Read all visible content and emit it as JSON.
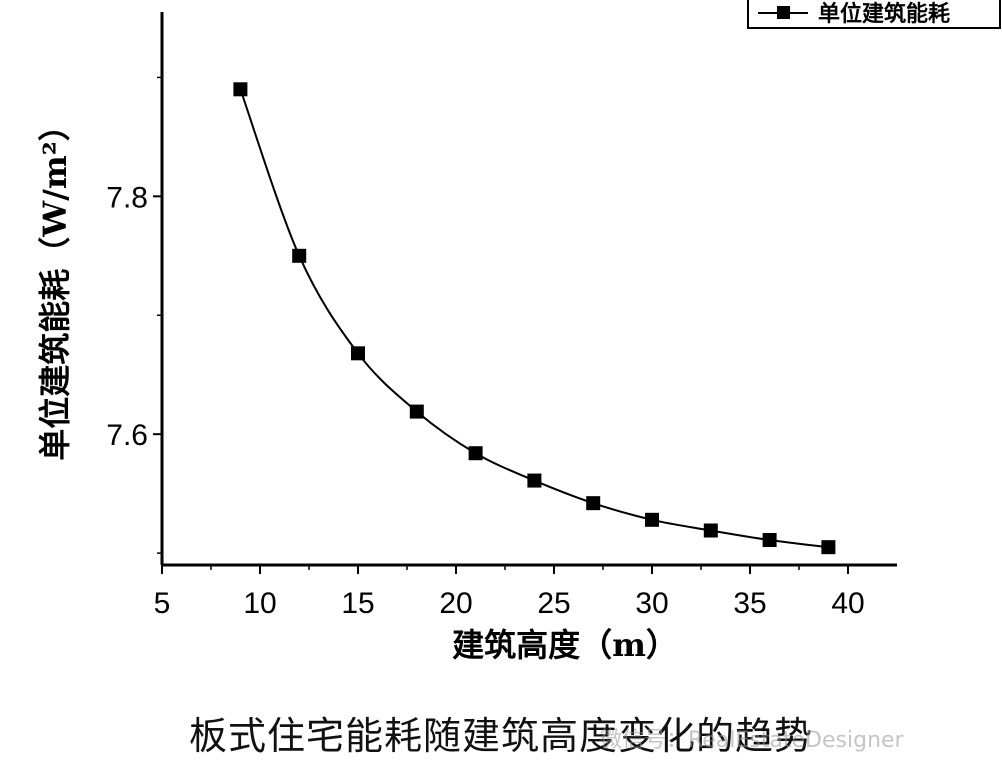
{
  "chart_data": {
    "type": "line",
    "xlabel": "建筑高度（m）",
    "ylabel": "单位建筑能耗（W/m²）",
    "xlim": [
      5,
      42.5
    ],
    "ylim": [
      7.49,
      7.955
    ],
    "xticks": [
      5,
      10,
      15,
      20,
      25,
      30,
      35,
      40
    ],
    "yticks": [
      7.6,
      7.8
    ],
    "ytick_labels": [
      "7.6",
      "7.8"
    ],
    "grid": false,
    "legend_position": "top-right",
    "series": [
      {
        "name": "单位建筑能耗",
        "color": "#000000",
        "marker": "square",
        "x": [
          9,
          12,
          15,
          18,
          21,
          24,
          27,
          30,
          33,
          36,
          39
        ],
        "y": [
          7.89,
          7.75,
          7.668,
          7.619,
          7.584,
          7.561,
          7.542,
          7.528,
          7.519,
          7.511,
          7.505
        ]
      }
    ]
  },
  "caption": "板式住宅能耗随建筑高度变化的趋势",
  "watermark": "微信号：RealEstateDesigner"
}
